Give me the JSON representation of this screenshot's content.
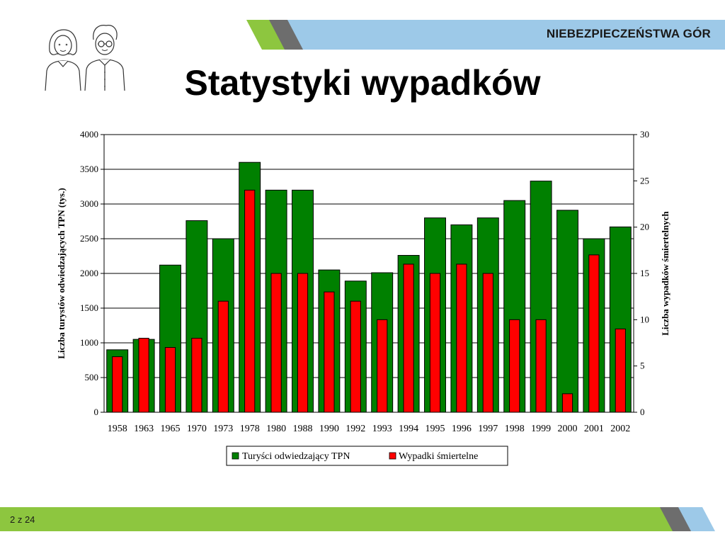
{
  "header": {
    "section_title": "NIEBEZPIECZEŃSTWA GÓR",
    "slide_title": "Statystyki wypadków"
  },
  "footer": {
    "page_label": "2 z 24"
  },
  "colors": {
    "banner_green": "#8dc63f",
    "banner_gray": "#6d6d6d",
    "banner_blue": "#9dc9e8",
    "bar_green": "#008000",
    "bar_red": "#ff0000"
  },
  "chart_data": {
    "type": "bar",
    "categories": [
      "1958",
      "1963",
      "1965",
      "1970",
      "1973",
      "1978",
      "1980",
      "1988",
      "1990",
      "1992",
      "1993",
      "1994",
      "1995",
      "1996",
      "1997",
      "1998",
      "1999",
      "2000",
      "2001",
      "2002"
    ],
    "series": [
      {
        "name": "Turyści odwiedzający TPN",
        "axis": "left",
        "color": "#008000",
        "values": [
          900,
          1050,
          2120,
          2760,
          2500,
          3600,
          3200,
          3200,
          2050,
          1890,
          2010,
          2260,
          2800,
          2700,
          2800,
          3050,
          3330,
          2910,
          2500,
          2670
        ]
      },
      {
        "name": "Wypadki śmiertelne",
        "axis": "right",
        "color": "#ff0000",
        "values": [
          6,
          8,
          7,
          8,
          12,
          24,
          15,
          15,
          13,
          12,
          10,
          16,
          15,
          16,
          15,
          10,
          10,
          2,
          17,
          9
        ]
      }
    ],
    "ylabel": "Liczba turystów odwiedzających TPN (tys.)",
    "y2label": "Liczba wypadków śmiertelnych",
    "ylim": [
      0,
      4000
    ],
    "yticks": [
      "0",
      "500",
      "1000",
      "1500",
      "2000",
      "2500",
      "3000",
      "3500",
      "4000"
    ],
    "y2lim": [
      0,
      30
    ],
    "y2ticks": [
      "0",
      "5",
      "10",
      "15",
      "20",
      "25",
      "30"
    ],
    "grid": true,
    "legend": "bottom"
  }
}
